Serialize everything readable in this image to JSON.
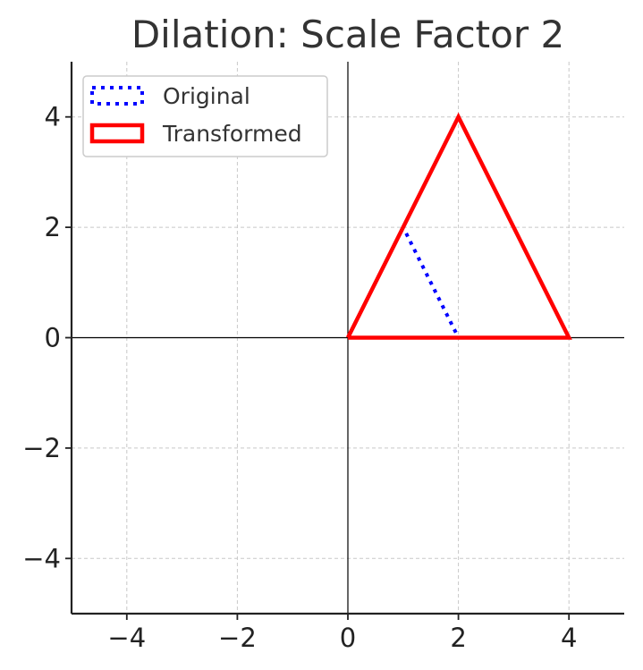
{
  "chart_data": {
    "type": "line",
    "title": "Dilation: Scale Factor 2",
    "xlabel": "",
    "ylabel": "",
    "xlim": [
      -5,
      5
    ],
    "ylim": [
      -5,
      5
    ],
    "xticks": [
      -4,
      -2,
      0,
      2,
      4
    ],
    "yticks": [
      -4,
      -2,
      0,
      2,
      4
    ],
    "xtick_labels": [
      "−4",
      "−2",
      "0",
      "2",
      "4"
    ],
    "ytick_labels": [
      "−4",
      "−2",
      "0",
      "2",
      "4"
    ],
    "grid": true,
    "legend_position": "upper-left",
    "series": [
      {
        "name": "Original",
        "color": "#0000ff",
        "linestyle": "dotted",
        "x": [
          0,
          2,
          1,
          0
        ],
        "y": [
          0,
          0,
          2,
          0
        ]
      },
      {
        "name": "Transformed",
        "color": "#ff0000",
        "linestyle": "solid",
        "x": [
          0,
          4,
          2,
          0
        ],
        "y": [
          0,
          0,
          4,
          0
        ]
      }
    ]
  }
}
